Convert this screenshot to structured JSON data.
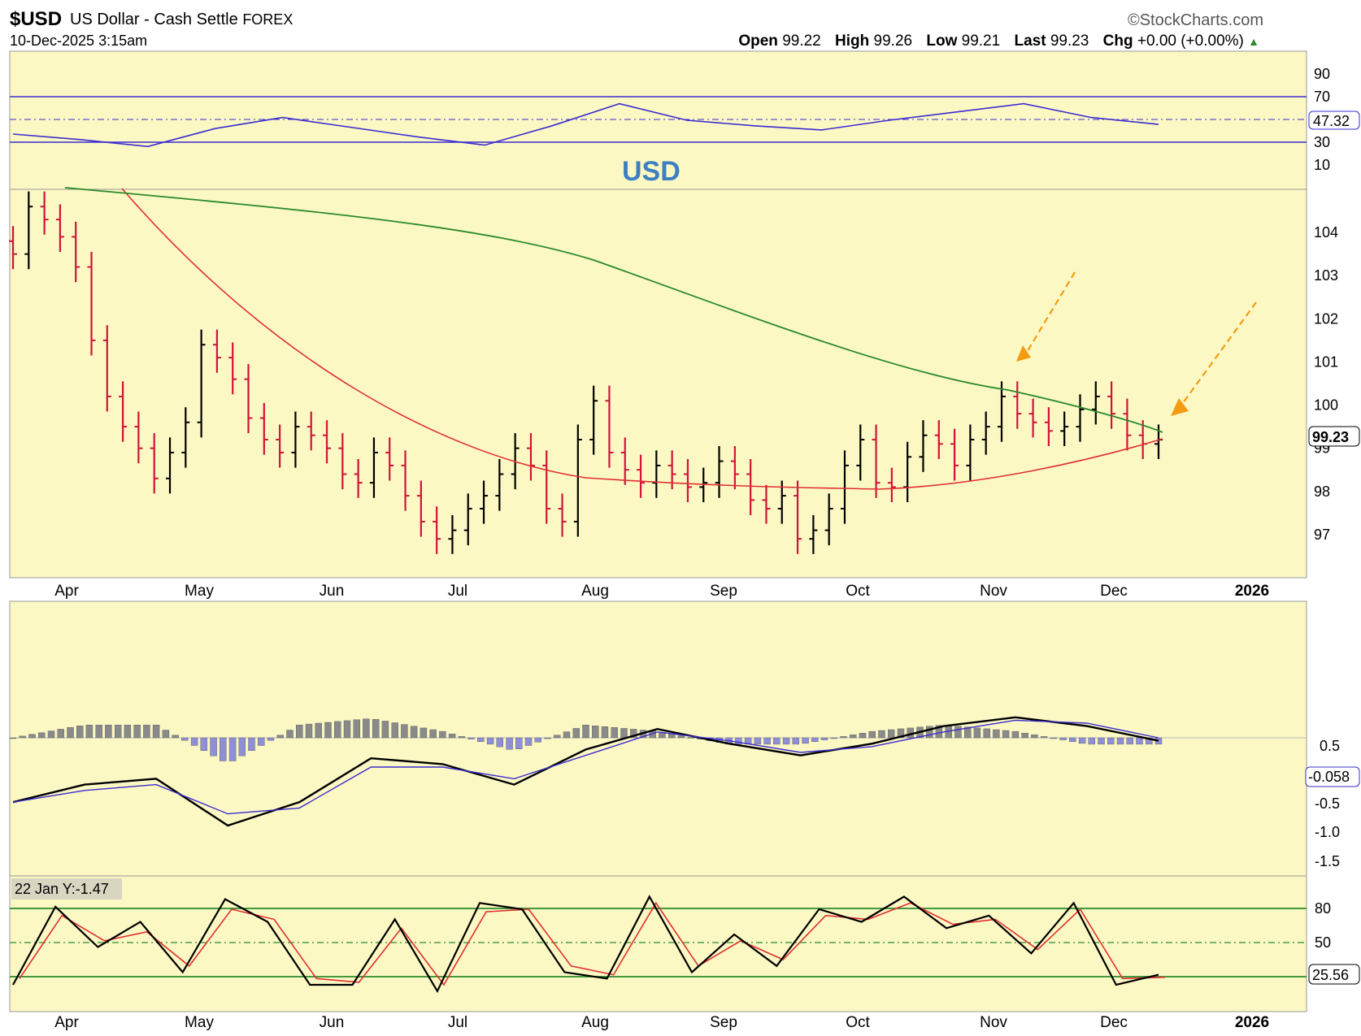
{
  "header": {
    "symbol": "$USD",
    "description": "US Dollar - Cash Settle",
    "exchange": "FOREX",
    "datetime": "10-Dec-2025 3:15am",
    "brand": "©StockCharts.com",
    "open_label": "Open",
    "open": "99.22",
    "high_label": "High",
    "high": "99.26",
    "low_label": "Low",
    "low": "99.21",
    "last_label": "Last",
    "last": "99.23",
    "chg_label": "Chg",
    "chg": "+0.00 (+0.00%)"
  },
  "colors": {
    "background": "#fbf8c4",
    "up_bar": "#000000",
    "down_bar": "#d1133a",
    "ma_fast": "#e03030",
    "ma_slow": "#2a8a2a",
    "indicator": "#3b2ccf",
    "arrow": "#f39c12"
  },
  "chart_data": [
    {
      "type": "line",
      "panel": "rsi",
      "yticks": [
        "90",
        "70",
        "30",
        "10"
      ],
      "levels": [
        70,
        50,
        30
      ],
      "last_label": "47.32",
      "x": [
        "Apr",
        "Apr",
        "May",
        "May",
        "Jun",
        "Jun",
        "Jul",
        "Jul",
        "Aug",
        "Aug",
        "Sep",
        "Sep",
        "Oct",
        "Oct",
        "Nov",
        "Nov",
        "Dec",
        "Dec"
      ],
      "values": [
        40,
        36,
        31,
        44,
        52,
        45,
        38,
        32,
        46,
        62,
        50,
        46,
        43,
        50,
        56,
        62,
        52,
        47
      ]
    },
    {
      "type": "bar",
      "panel": "price",
      "label": "USD",
      "ylim": [
        96,
        105
      ],
      "yticks": [
        "104",
        "103",
        "102",
        "101",
        "100",
        "99",
        "98",
        "97"
      ],
      "last_label": "99.23",
      "months": [
        "Apr",
        "May",
        "Jun",
        "Jul",
        "Aug",
        "Sep",
        "Oct",
        "Nov",
        "Dec",
        "2026"
      ],
      "closes": [
        103.5,
        104.6,
        104.3,
        103.9,
        103.2,
        101.5,
        100.2,
        99.5,
        99.0,
        98.3,
        98.9,
        99.6,
        101.4,
        101.1,
        100.6,
        99.7,
        99.2,
        98.9,
        99.5,
        99.3,
        99.0,
        98.4,
        98.2,
        98.9,
        98.6,
        97.9,
        97.3,
        96.9,
        97.1,
        97.6,
        97.9,
        98.4,
        99.0,
        98.6,
        97.6,
        97.3,
        99.2,
        100.1,
        98.9,
        98.5,
        98.2,
        98.6,
        98.4,
        98.1,
        98.2,
        98.7,
        98.4,
        97.8,
        97.6,
        97.9,
        96.9,
        97.1,
        97.6,
        98.6,
        99.2,
        98.2,
        98.1,
        98.8,
        99.3,
        99.1,
        98.6,
        99.2,
        99.5,
        100.2,
        99.8,
        99.6,
        99.4,
        99.5,
        99.9,
        100.2,
        99.8,
        99.3,
        99.1,
        99.2
      ],
      "ma_fast_endpoints": [
        103.9,
        99.3
      ],
      "ma_slow_endpoints": [
        104.4,
        99.5
      ]
    },
    {
      "type": "line",
      "panel": "macd",
      "yticks": [
        "0.5",
        "-0.5",
        "-1.0",
        "-1.5"
      ],
      "last_label": "-0.058",
      "macd": [
        -1.1,
        -0.8,
        -0.7,
        -1.5,
        -1.1,
        -0.35,
        -0.45,
        -0.8,
        -0.2,
        0.15,
        -0.1,
        -0.3,
        -0.1,
        0.2,
        0.35,
        0.2,
        -0.05
      ],
      "signal": [
        -1.1,
        -0.9,
        -0.8,
        -1.3,
        -1.2,
        -0.5,
        -0.5,
        -0.7,
        -0.3,
        0.1,
        -0.05,
        -0.25,
        -0.15,
        0.1,
        0.3,
        0.25,
        0.0
      ]
    },
    {
      "type": "line",
      "panel": "stochastic",
      "annotation": "22 Jan Y:-1.47",
      "yticks": [
        "80",
        "50"
      ],
      "levels": [
        80,
        50,
        20
      ],
      "last_label": "25.56",
      "months": [
        "Apr",
        "May",
        "Jun",
        "Jul",
        "Aug",
        "Sep",
        "Oct",
        "Nov",
        "Dec",
        "2026"
      ],
      "k": [
        20,
        82,
        50,
        70,
        30,
        88,
        70,
        20,
        20,
        72,
        15,
        85,
        80,
        30,
        25,
        90,
        30,
        60,
        35,
        80,
        70,
        90,
        65,
        75,
        45,
        85,
        20,
        28
      ],
      "d": [
        25,
        75,
        55,
        62,
        35,
        80,
        72,
        25,
        22,
        65,
        20,
        78,
        80,
        35,
        28,
        85,
        35,
        55,
        40,
        75,
        72,
        85,
        68,
        72,
        48,
        80,
        25,
        26
      ]
    }
  ]
}
